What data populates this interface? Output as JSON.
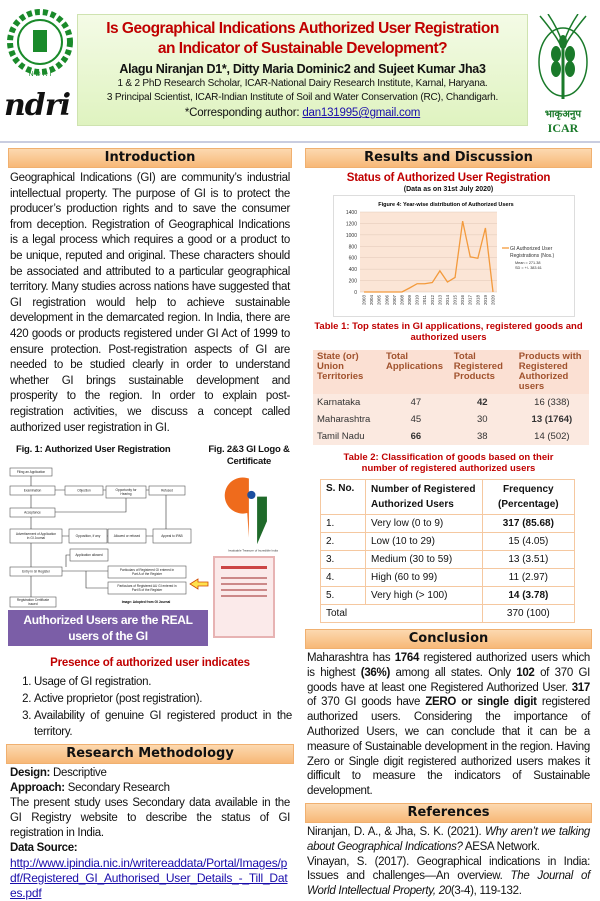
{
  "header": {
    "title_line1": "Is Geographical Indications Authorized User Registration",
    "title_line2": "an Indicator of Sustainable Development?",
    "authors": "Alagu Niranjan D1*, Ditty Maria Dominic2 and Sujeet Kumar Jha3",
    "affiliation1": "1 & 2 PhD Research Scholar, ICAR-National Dairy Research Institute, Karnal, Haryana.",
    "affiliation2": "3 Principal Scientist, ICAR-Indian Institute of Soil and Water Conservation (RC), Chandigarh.",
    "corresponding_label": "*Corresponding author: ",
    "email": "dan131995@gmail.com",
    "left_logo_text": "ndri",
    "left_seal_text": "N D R I",
    "right_logo_text": "ICAR",
    "right_logo_hindi": "भाकृअनुप"
  },
  "introduction": {
    "heading": "Introduction",
    "body": "Geographical Indications (GI) are community’s industrial intellectual property. The purpose of GI is to protect the producer’s production rights and to save the consumer from deception. Registration of Geographical Indications is a legal process which requires a good or a product to be unique, reputed and original. These characters should be associated and attributed to a particular geographical territory. Many studies across nations have suggested that GI registration would help to achieve sustainable development in the demarcated region. In India, there are 420 goods or products registered under GI Act of 1999 to ensure protection. Post-registration aspects of GI are needed to be studied clearly in order to understand whether GI brings sustainable development and prosperity to the region. In order to explain post-registration activities, we discuss a concept called authorized user registration in GI."
  },
  "figures": {
    "fig1_title": "Fig. 1: Authorized User Registration",
    "fig23_title": "Fig. 2&3 GI Logo & Certificate",
    "flow": [
      "Filing an Application",
      "Examination",
      "Objection",
      "Opportunity for Hearing",
      "Refused",
      "Acceptance",
      "Advertisement of Application in GI Journal",
      "Opposition, if any",
      "Allowed or refused",
      "Appeal to IPAB",
      "Application allowed",
      "Entry in GI Register",
      "Particulars of Registered GI entered in Part A of the Register",
      "Particulars of Registered AU GI entered in Part B of the Register",
      "Registration Certificate issued"
    ],
    "image_credit": "Image: Adopted from GI Journal",
    "gi_logo_caption": "Invaluable Treasure of Incredible India",
    "callout": "Authorized Users are the REAL users of the GI",
    "presence_heading": "Presence of authorized user indicates",
    "presence_items": [
      "Usage of GI registration.",
      "Active proprietor (post registration).",
      "Availability of genuine GI registered product in the territory."
    ]
  },
  "methodology": {
    "heading": "Research Methodology",
    "design_label": "Design:",
    "design_value": " Descriptive",
    "approach_label": "Approach:",
    "approach_value": " Secondary Research",
    "body": "The present study uses Secondary data available in the GI Registry website to describe the status of GI registration in India.",
    "source_label": "Data Source:",
    "source_url": "http://www.ipindia.nic.in/writereaddata/Portal/Images/pdf/Registered_GI_Authorised_User_Details_-_Till_Dates.pdf"
  },
  "results": {
    "heading": "Results and Discussion",
    "status_title": "Status of Authorized User Registration",
    "status_subtitle": "(Data as on 31st July 2020)"
  },
  "chart_data": {
    "type": "line",
    "title": "Figure 4: Year-wise distribution of Authorized Users",
    "x": [
      "2003",
      "2004",
      "2005",
      "2006",
      "2007",
      "2008",
      "2009",
      "2010",
      "2011",
      "2012",
      "2013",
      "2014",
      "2015",
      "2016",
      "2017",
      "2018",
      "2019",
      "2020"
    ],
    "series": [
      {
        "name": "GI Authorized User Registrations (Nos.)",
        "values": [
          0,
          0,
          0,
          0,
          0,
          0,
          70,
          145,
          145,
          165,
          370,
          175,
          255,
          1240,
          615,
          590,
          1120,
          0
        ]
      }
    ],
    "yticks": [
      "0",
      "200",
      "400",
      "600",
      "800",
      "1000",
      "1200",
      "1400"
    ],
    "ylim": [
      0,
      1400
    ],
    "grid": true,
    "legend": "right",
    "legend_mean": "Mean   = 271.38",
    "legend_sd": "SD       = +/- 383.61",
    "color": "#f39a3c",
    "plot_bg": "#fbe5d6"
  },
  "table1": {
    "title": "Table 1: Top states in GI applications, registered goods and authorized users",
    "headers": [
      "State (or) Union Territories",
      "Total Applications",
      "Total Registered Products",
      "Products with Registered Authorized users"
    ],
    "rows": [
      [
        "Karnataka",
        "47",
        "42",
        "16 (338)"
      ],
      [
        "Maharashtra",
        "45",
        "30",
        "13 (1764)"
      ],
      [
        "Tamil Nadu",
        "66",
        "38",
        "14 (502)"
      ]
    ]
  },
  "table2": {
    "title": "Table 2: Classification of goods based on their number of registered authorized users",
    "headers": [
      "S. No.",
      "Number of Registered Authorized Users",
      "Frequency (Percentage)"
    ],
    "rows": [
      [
        "1.",
        "Very low (0 to 9)",
        "317 (85.68)"
      ],
      [
        "2.",
        "Low (10 to 29)",
        "15 (4.05)"
      ],
      [
        "3.",
        "Medium (30 to 59)",
        "13 (3.51)"
      ],
      [
        "4.",
        "High (60 to 99)",
        "11 (2.97)"
      ],
      [
        "5.",
        "Very high (> 100)",
        "14 (3.78)"
      ]
    ],
    "total_label": "Total",
    "total_value": "370 (100)"
  },
  "conclusion": {
    "heading": "Conclusion",
    "p1a": "Maharashtra has ",
    "p1b": "1764",
    "p1c": " registered authorized users which is highest ",
    "p1d": "(36%)",
    "p1e": " among all states. Only ",
    "p1f": "102",
    "p1g": " of 370 GI goods have at least one Registered Authorized User. ",
    "p1h": "317",
    "p1i": " of 370 GI goods have ",
    "p1j": "ZERO or single digit",
    "p1k": " registered authorized users. Considering the importance of Authorized Users, we can conclude that it can be a measure of Sustainable development in the region. Having Zero or Single digit registered authorized users makes it difficult to measure the indicators of Sustainable development."
  },
  "references": {
    "heading": "References",
    "r1a": "Niranjan, D. A., & Jha, S. K. (2021). ",
    "r1b": "Why aren’t we talking about Geographical Indications?",
    "r1c": " AESA Network.",
    "r2a": "Vinayan, S. (2017). Geographical indications in India: Issues and challenges—An overview. ",
    "r2b": "The Journal of World Intellectual Property, 20",
    "r2c": "(3-4), 119-132."
  }
}
